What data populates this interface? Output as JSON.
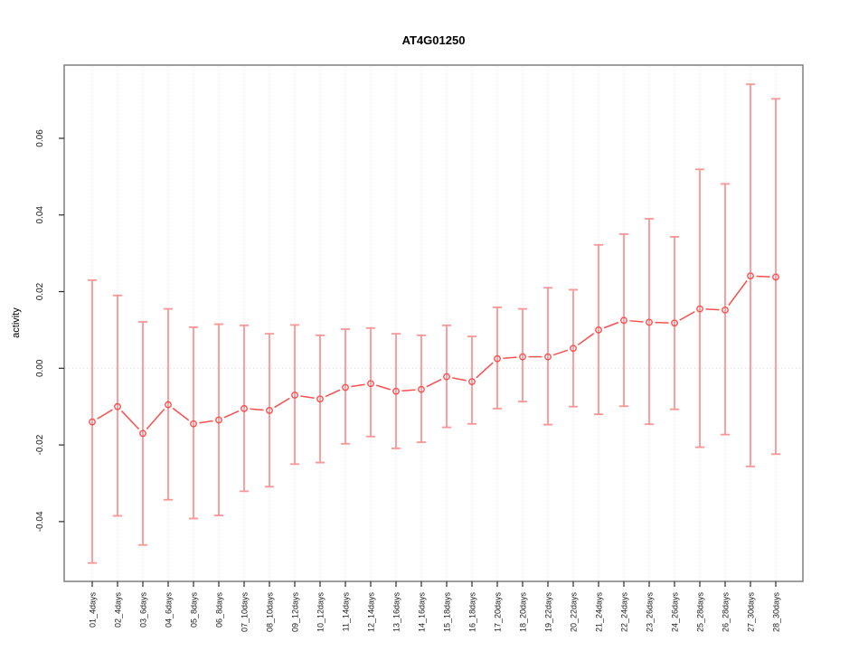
{
  "title": "AT4G01250",
  "ylabel": "activity",
  "xlabel": "",
  "colors": {
    "series": "#f94f4f",
    "error_bar": "#ff9494",
    "grid": "#dedede",
    "zero_line": "#d6d6d6",
    "border": "#7f7f7f",
    "tick": "#2a2a2a",
    "text": "#1a1a1a",
    "background": "#ffffff"
  },
  "chart_data": {
    "type": "line",
    "subtype": "points-with-error-bars",
    "title": "AT4G01250",
    "xlabel": "",
    "ylabel": "activity",
    "grid": "vertical-dotted",
    "zero_line_dotted": true,
    "legend": "none",
    "ylim": [
      -0.0556,
      0.0791
    ],
    "yticks": [
      {
        "value": 0.06,
        "label": "0.06"
      },
      {
        "value": 0.04,
        "label": "0.04"
      },
      {
        "value": 0.02,
        "label": "0.02"
      },
      {
        "value": 0.0,
        "label": "0.00"
      },
      {
        "value": -0.02,
        "label": "-0.02"
      },
      {
        "value": -0.04,
        "label": "-0.04"
      }
    ],
    "categories": [
      "01_4days",
      "02_4days",
      "03_6days",
      "04_6days",
      "05_8days",
      "06_8days",
      "07_10days",
      "08_10days",
      "09_12days",
      "10_12days",
      "11_14days",
      "12_14days",
      "13_16days",
      "14_16days",
      "15_18days",
      "16_18days",
      "17_20days",
      "18_20days",
      "19_22days",
      "20_22days",
      "21_24days",
      "22_24days",
      "23_26days",
      "24_26days",
      "25_28days",
      "26_28days",
      "27_30days",
      "28_30days"
    ],
    "series": [
      {
        "name": "activity",
        "values": [
          -0.014,
          -0.01,
          -0.017,
          -0.0095,
          -0.0145,
          -0.0135,
          -0.0105,
          -0.011,
          -0.007,
          -0.008,
          -0.005,
          -0.004,
          -0.006,
          -0.0055,
          -0.0022,
          -0.0035,
          0.0025,
          0.003,
          0.003,
          0.0052,
          0.01,
          0.0125,
          0.012,
          0.0118,
          0.0155,
          0.0152,
          0.0241,
          0.0238
        ],
        "upper": [
          0.023,
          0.019,
          0.0121,
          0.0155,
          0.0107,
          0.0115,
          0.0112,
          0.009,
          0.0113,
          0.0086,
          0.0102,
          0.0105,
          0.009,
          0.0086,
          0.0112,
          0.0083,
          0.0159,
          0.0155,
          0.021,
          0.0205,
          0.0322,
          0.035,
          0.039,
          0.0343,
          0.0519,
          0.0481,
          0.0741,
          0.0703
        ],
        "lower": [
          -0.0508,
          -0.0385,
          -0.0461,
          -0.0343,
          -0.0392,
          -0.0384,
          -0.0321,
          -0.0309,
          -0.025,
          -0.0246,
          -0.0197,
          -0.0178,
          -0.0209,
          -0.0193,
          -0.0154,
          -0.0145,
          -0.0105,
          -0.0087,
          -0.0147,
          -0.01,
          -0.012,
          -0.0099,
          -0.0146,
          -0.0107,
          -0.0206,
          -0.0173,
          -0.0256,
          -0.0224
        ]
      }
    ]
  }
}
